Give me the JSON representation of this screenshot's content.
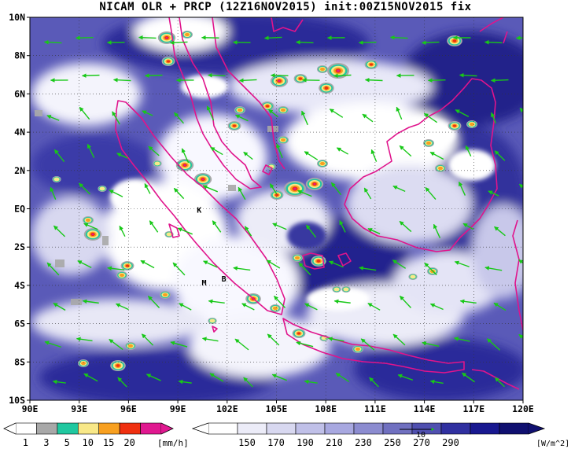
{
  "title": "NICAM OLR + PRCP (12Z16NOV2015) init:00Z15NOV2015 fix",
  "map": {
    "region": "Maritime Continent (Sumatra / Malay Peninsula / Borneo / Java)",
    "lon_range": [
      90,
      120
    ],
    "lat_range": [
      -10,
      10
    ],
    "lon_labels": [
      "90E",
      "93E",
      "96E",
      "99E",
      "102E",
      "105E",
      "108E",
      "111E",
      "114E",
      "117E",
      "120E"
    ],
    "lat_labels": [
      "10N",
      "8N",
      "6N",
      "4N",
      "2N",
      "EQ",
      "2S",
      "4S",
      "6S",
      "8S",
      "10S"
    ],
    "place_markers": [
      {
        "label": "K",
        "lon": 100.3,
        "lat": -0.2
      },
      {
        "label": "M",
        "lon": 100.6,
        "lat": -4.0
      },
      {
        "label": "B",
        "lon": 101.8,
        "lat": -3.8
      }
    ],
    "colors": {
      "coastline": "#e0148c",
      "wind_vector": "#18c818",
      "grid": "#333333",
      "background": "#ffffff"
    }
  },
  "legends": {
    "precip": {
      "unit": "[mm/h]",
      "ticks": [
        "1",
        "3",
        "5",
        "10",
        "15",
        "20"
      ],
      "colors": [
        "#ffffff",
        "#a8a8a8",
        "#20c8a0",
        "#f8e888",
        "#f8a020",
        "#f03010",
        "#e01890"
      ]
    },
    "olr": {
      "unit": "[W/m^2]",
      "ticks": [
        "150",
        "170",
        "190",
        "210",
        "230",
        "250",
        "270",
        "290"
      ],
      "colors": [
        "#ffffff",
        "#ececf8",
        "#d8d8f0",
        "#c0c0e8",
        "#a8a8e0",
        "#8c8cd0",
        "#7070c0",
        "#5050b0",
        "#3030a0",
        "#181890",
        "#101070"
      ],
      "reference_vector_label": "10"
    }
  }
}
